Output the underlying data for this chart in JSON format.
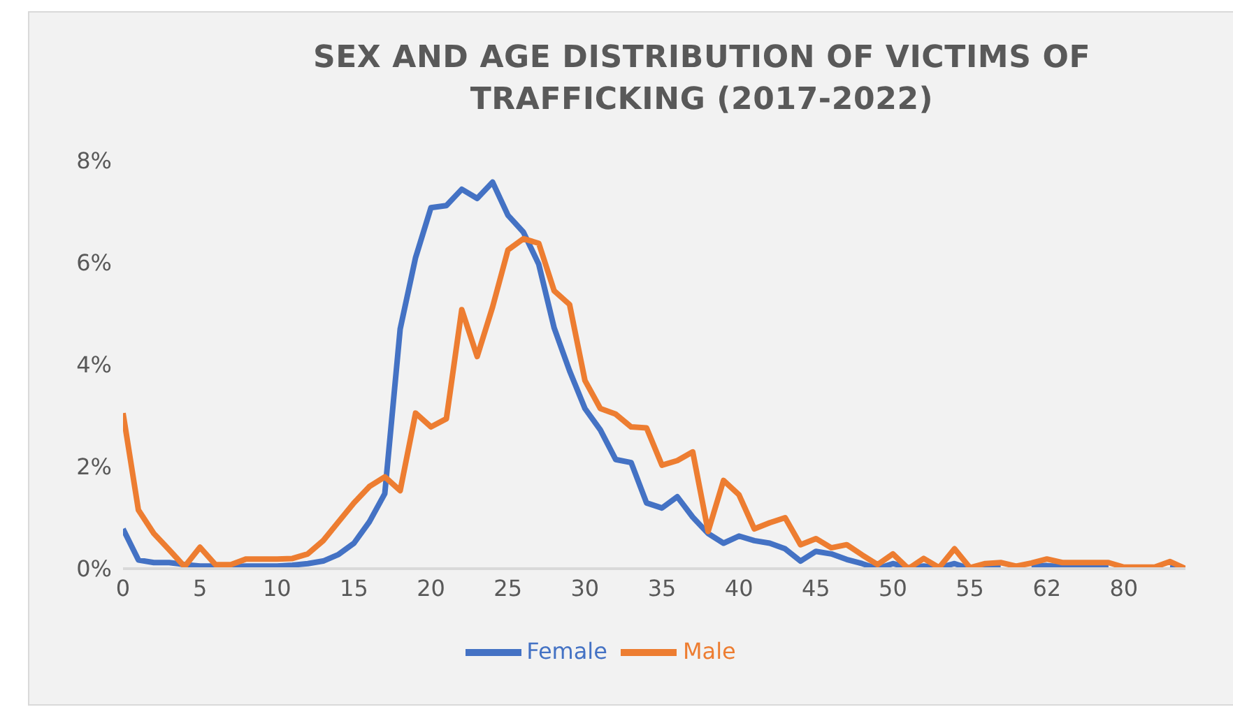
{
  "chart_data": {
    "type": "line",
    "title": "SEX AND AGE DISTRIBUTION OF VICTIMS OF TRAFFICKING (2017-2022)",
    "categories": [
      "0",
      null,
      null,
      null,
      null,
      "5",
      null,
      null,
      null,
      null,
      "10",
      null,
      null,
      null,
      null,
      "15",
      null,
      null,
      null,
      null,
      "20",
      null,
      null,
      null,
      null,
      "25",
      null,
      null,
      null,
      null,
      "30",
      null,
      null,
      null,
      null,
      "35",
      null,
      null,
      null,
      null,
      "40",
      null,
      null,
      null,
      null,
      "45",
      null,
      null,
      null,
      null,
      "50",
      null,
      null,
      null,
      null,
      "55",
      null,
      null,
      null,
      null,
      "62",
      null,
      null,
      null,
      null,
      "80",
      null,
      null,
      null,
      null
    ],
    "series": [
      {
        "name": "Female",
        "color": "#4472c4",
        "values": [
          0.78,
          0.17,
          0.12,
          0.12,
          0.08,
          0.05,
          0.05,
          0.04,
          0.05,
          0.05,
          0.05,
          0.07,
          0.1,
          0.15,
          0.28,
          0.5,
          0.92,
          1.47,
          4.7,
          6.1,
          7.08,
          7.12,
          7.44,
          7.26,
          7.58,
          6.93,
          6.6,
          5.97,
          4.72,
          3.88,
          3.14,
          2.72,
          2.14,
          2.08,
          1.29,
          1.19,
          1.41,
          1.01,
          0.69,
          0.5,
          0.64,
          0.55,
          0.5,
          0.39,
          0.15,
          0.34,
          0.29,
          0.18,
          0.1,
          0,
          0.1,
          0.02,
          0.05,
          0.02,
          0.1,
          0,
          0.04,
          0.04,
          null,
          0.05,
          0.06,
          0.04,
          0.04,
          0.04,
          0.04,
          null,
          null,
          null,
          0.04,
          0
        ]
      },
      {
        "name": "Male",
        "color": "#ed7d31",
        "values": [
          3.05,
          1.15,
          0.69,
          0.37,
          0.04,
          0.42,
          0.08,
          0.08,
          0.19,
          0.19,
          0.19,
          0.2,
          0.29,
          0.55,
          0.92,
          1.29,
          1.61,
          1.8,
          1.53,
          3.05,
          2.78,
          2.94,
          5.08,
          4.16,
          5.13,
          6.25,
          6.47,
          6.38,
          5.45,
          5.18,
          3.69,
          3.14,
          3.03,
          2.78,
          2.76,
          2.03,
          2.12,
          2.29,
          0.73,
          1.73,
          1.45,
          0.78,
          0.9,
          1.0,
          0.47,
          0.59,
          0.41,
          0.47,
          0.27,
          0.08,
          0.29,
          0,
          0.2,
          0.02,
          0.39,
          0.02,
          0.1,
          0.12,
          0.05,
          0.11,
          0.19,
          0.12,
          0.12,
          0.12,
          0.12,
          0.03,
          0.03,
          0.03,
          0.14,
          0
        ]
      }
    ],
    "ylim": [
      0,
      8
    ],
    "yticks": [
      {
        "value": 0,
        "label": "0%"
      },
      {
        "value": 2,
        "label": "2%"
      },
      {
        "value": 4,
        "label": "4%"
      },
      {
        "value": 6,
        "label": "6%"
      },
      {
        "value": 8,
        "label": "8%"
      }
    ],
    "legend": "bottom"
  }
}
